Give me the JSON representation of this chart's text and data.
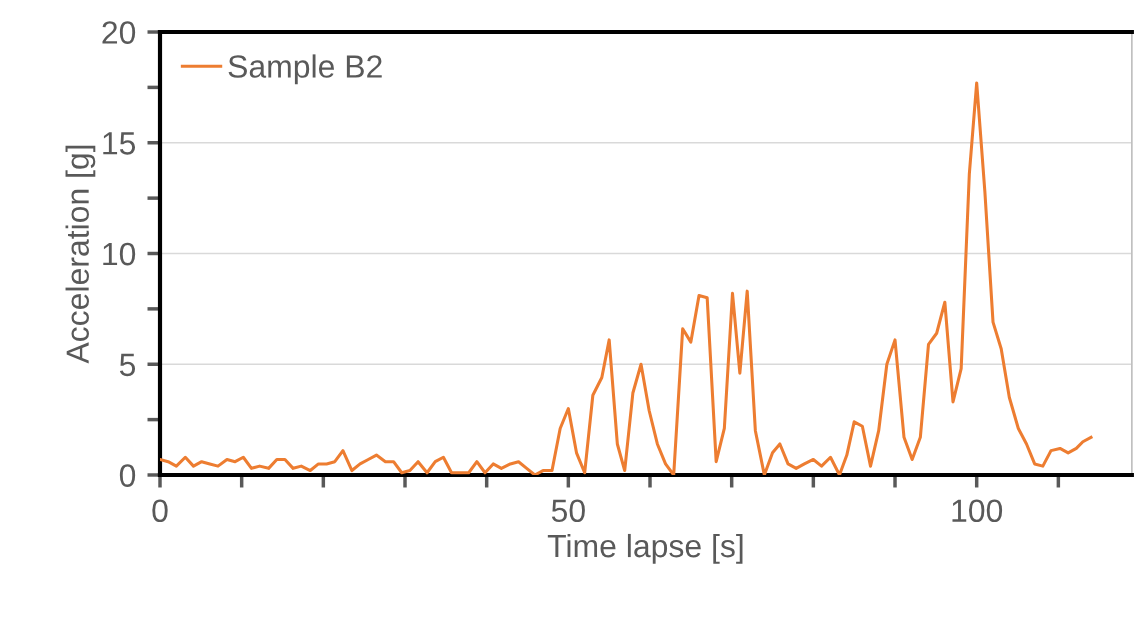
{
  "chart_data": {
    "type": "line",
    "xlabel": "Time lapse [s]",
    "ylabel": "Acceleration [g]",
    "xlim": [
      0,
      119
    ],
    "ylim": [
      0,
      20
    ],
    "xticks": [
      0,
      {
        "value": 10,
        "label": null
      },
      {
        "value": 20,
        "label": null
      },
      {
        "value": 30,
        "label": null
      },
      {
        "value": 40,
        "label": null
      },
      50,
      {
        "value": 60,
        "label": null
      },
      {
        "value": 70,
        "label": null
      },
      {
        "value": 80,
        "label": null
      },
      {
        "value": 90,
        "label": null
      },
      100,
      {
        "value": 110,
        "label": null
      }
    ],
    "yticks": [
      0,
      {
        "value": 2.5,
        "label": null
      },
      5,
      {
        "value": 7.5,
        "label": null
      },
      10,
      {
        "value": 12.5,
        "label": null
      },
      15,
      {
        "value": 17.5,
        "label": null
      },
      20
    ],
    "grid": "y",
    "legend": "top left",
    "marker": "none",
    "line_style": "solid",
    "series": [
      {
        "name": "Sample B2",
        "color": "#ed7d31",
        "x": [
          0,
          1.0,
          2.0,
          3.1,
          4.1,
          5.1,
          6.1,
          7.1,
          8.2,
          9.2,
          10.2,
          11.2,
          12.2,
          13.3,
          14.3,
          15.3,
          16.3,
          17.3,
          18.4,
          19.4,
          20.4,
          21.4,
          22.4,
          23.5,
          24.5,
          25.5,
          26.5,
          27.6,
          28.6,
          29.6,
          30.6,
          31.6,
          32.7,
          33.7,
          34.7,
          35.7,
          36.7,
          37.8,
          38.8,
          39.8,
          40.8,
          41.8,
          42.9,
          43.9,
          44.9,
          45.9,
          46.9,
          48.0,
          49.0,
          50.0,
          51.0,
          52.0,
          53.0,
          54.1,
          55.0,
          56.0,
          56.9,
          57.9,
          58.9,
          59.9,
          60.9,
          61.9,
          62.9,
          64.0,
          65.0,
          66.0,
          67.0,
          68.1,
          69.1,
          70.1,
          71.0,
          71.9,
          72.9,
          74.0,
          75.0,
          75.9,
          76.9,
          77.9,
          78.9,
          80.0,
          81.0,
          82.1,
          83.2,
          84.1,
          85.0,
          86.0,
          87.0,
          88.0,
          89.0,
          90.0,
          91.1,
          92.1,
          93.1,
          94.1,
          95.1,
          96.1,
          97.1,
          98.1,
          99.1,
          100.0,
          101.0,
          102.0,
          103.0,
          104.0,
          105.1,
          106.1,
          107.1,
          108.1,
          109.1,
          110.2,
          111.2,
          112.2,
          113.0,
          114.0
        ],
        "values": [
          0.7,
          0.6,
          0.4,
          0.8,
          0.4,
          0.6,
          0.5,
          0.4,
          0.7,
          0.6,
          0.8,
          0.3,
          0.4,
          0.3,
          0.7,
          0.7,
          0.3,
          0.4,
          0.2,
          0.5,
          0.5,
          0.6,
          1.1,
          0.2,
          0.5,
          0.7,
          0.9,
          0.6,
          0.6,
          0.1,
          0.2,
          0.6,
          0.1,
          0.6,
          0.8,
          0.1,
          0.1,
          0.1,
          0.6,
          0.1,
          0.5,
          0.3,
          0.5,
          0.6,
          0.3,
          0.0,
          0.2,
          0.2,
          2.1,
          3.0,
          1.0,
          0.1,
          3.6,
          4.4,
          6.1,
          1.4,
          0.2,
          3.7,
          5.0,
          2.9,
          1.4,
          0.5,
          0.0,
          6.6,
          6.0,
          8.1,
          8.0,
          0.6,
          2.1,
          8.2,
          4.6,
          8.3,
          2.0,
          0.0,
          1.0,
          1.4,
          0.5,
          0.3,
          0.5,
          0.7,
          0.4,
          0.8,
          0.0,
          0.9,
          2.4,
          2.2,
          0.4,
          2.0,
          5.0,
          6.1,
          1.7,
          0.7,
          1.7,
          5.9,
          6.4,
          7.8,
          3.3,
          4.8,
          13.6,
          17.7,
          12.8,
          6.9,
          5.7,
          3.5,
          2.1,
          1.4,
          0.5,
          0.4,
          1.1,
          1.2,
          1.0,
          1.2,
          1.5,
          1.7
        ]
      }
    ]
  }
}
